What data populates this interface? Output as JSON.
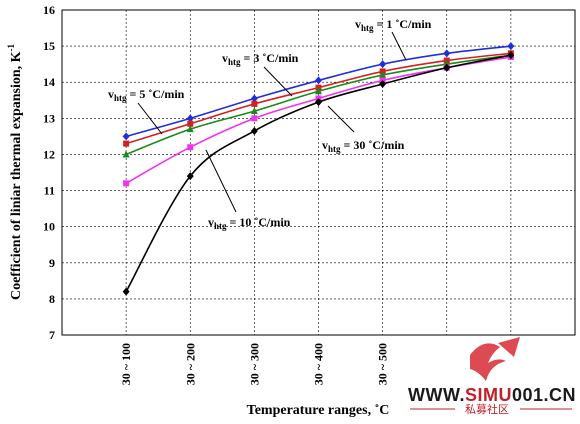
{
  "chart_data": {
    "type": "line",
    "title": "",
    "xlabel": "Temperature ranges, ˚C",
    "ylabel": "Coefficient of liniar thermal expansion, K",
    "ylabel_sup": "-1",
    "ylim": [
      7,
      16
    ],
    "yticks": [
      7,
      8,
      9,
      10,
      11,
      12,
      13,
      14,
      15,
      16
    ],
    "categories": [
      "30 ~ 100",
      "30 ~ 200",
      "30 ~ 300",
      "30 ~ 400",
      "30 ~ 500",
      "",
      "",
      ""
    ],
    "grid": true,
    "legend": "none",
    "series": [
      {
        "name": "1 ˚C/min",
        "color": "#2030d8",
        "marker": "diamond",
        "values": [
          12.5,
          13.0,
          13.55,
          14.05,
          14.5,
          14.8,
          15.0,
          null
        ]
      },
      {
        "name": "3 ˚C/min",
        "color": "#d42020",
        "marker": "square",
        "values": [
          12.3,
          12.85,
          13.4,
          13.85,
          14.3,
          14.6,
          14.8,
          null
        ]
      },
      {
        "name": "5 ˚C/min",
        "color": "#1a8a1a",
        "marker": "triangle",
        "values": [
          12.0,
          12.7,
          13.2,
          13.75,
          14.2,
          14.5,
          14.75,
          null
        ]
      },
      {
        "name": "10 ˚C/min",
        "color": "#ee33ee",
        "marker": "square",
        "values": [
          11.2,
          12.2,
          13.0,
          13.55,
          14.05,
          14.4,
          14.7,
          null
        ]
      },
      {
        "name": "30 ˚C/min",
        "color": "#000000",
        "marker": "diamond",
        "values": [
          8.2,
          11.4,
          12.65,
          13.45,
          13.95,
          14.4,
          14.75,
          null
        ]
      }
    ],
    "annotations": [
      {
        "prefix": "v",
        "sub": "htg",
        "text": " = 1 ˚C/min"
      },
      {
        "prefix": "v",
        "sub": "htg",
        "text": " = 3 ˚C/min"
      },
      {
        "prefix": "v",
        "sub": "htg",
        "text": " = 5 ˚C/min"
      },
      {
        "prefix": "v",
        "sub": "htg",
        "text": " = 10 ˚C/min"
      },
      {
        "prefix": "v",
        "sub": "htg",
        "text": " = 30 ˚C/min"
      }
    ]
  },
  "watermark": {
    "text": "WWW.SIMU001.CN",
    "subtext": "私募社区",
    "colors": {
      "dark": "#1a1a1a",
      "accent": "#c0202a"
    }
  }
}
